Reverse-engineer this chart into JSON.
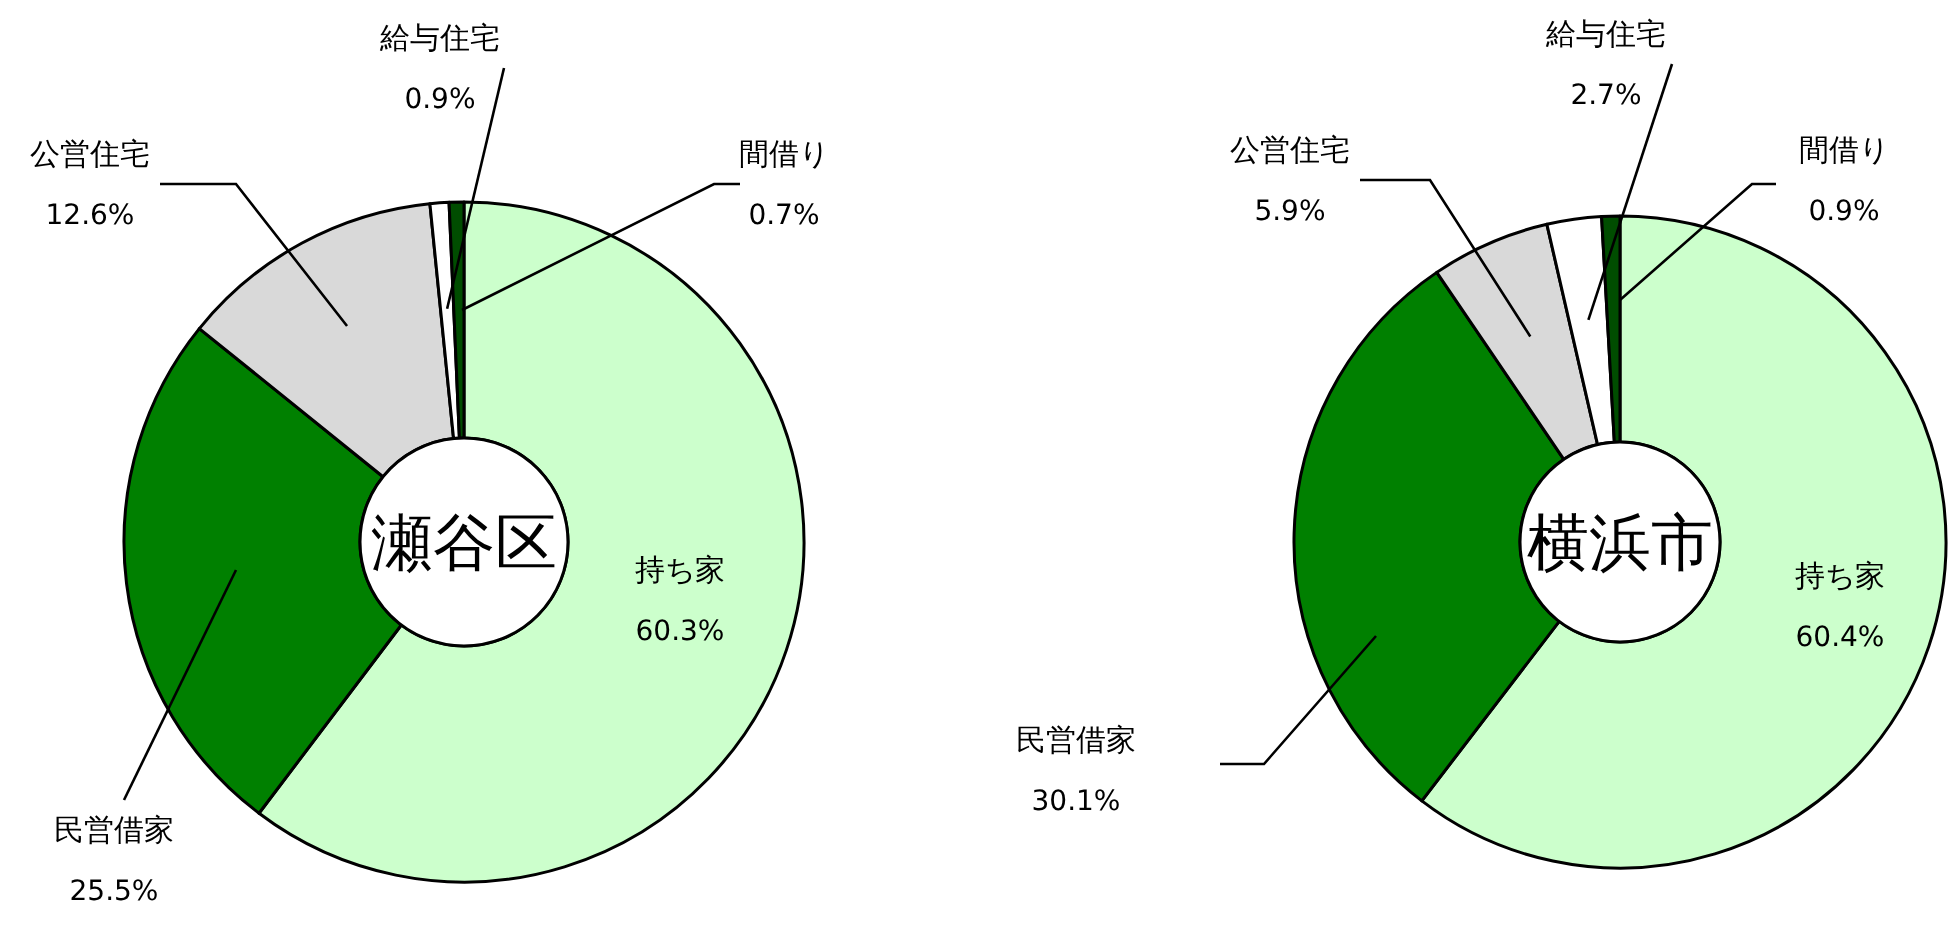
{
  "chart_data": [
    {
      "type": "donut",
      "title": "瀬谷区",
      "categories": [
        "持ち家",
        "民営借家",
        "公営住宅",
        "給与住宅",
        "間借り"
      ],
      "values": [
        60.3,
        25.5,
        12.6,
        0.9,
        0.7
      ],
      "value_labels": [
        "60.3%",
        "25.5%",
        "12.6%",
        "0.9%",
        "0.7%"
      ],
      "colors": [
        "#ccffcc",
        "#008000",
        "#d9d9d9",
        "#ffffff",
        "#004d00"
      ]
    },
    {
      "type": "donut",
      "title": "横浜市",
      "categories": [
        "持ち家",
        "民営借家",
        "公営住宅",
        "給与住宅",
        "間借り"
      ],
      "values": [
        60.4,
        30.1,
        5.9,
        2.7,
        0.9
      ],
      "value_labels": [
        "60.4%",
        "30.1%",
        "5.9%",
        "2.7%",
        "0.9%"
      ],
      "colors": [
        "#ccffcc",
        "#008000",
        "#d9d9d9",
        "#ffffff",
        "#004d00"
      ]
    }
  ]
}
